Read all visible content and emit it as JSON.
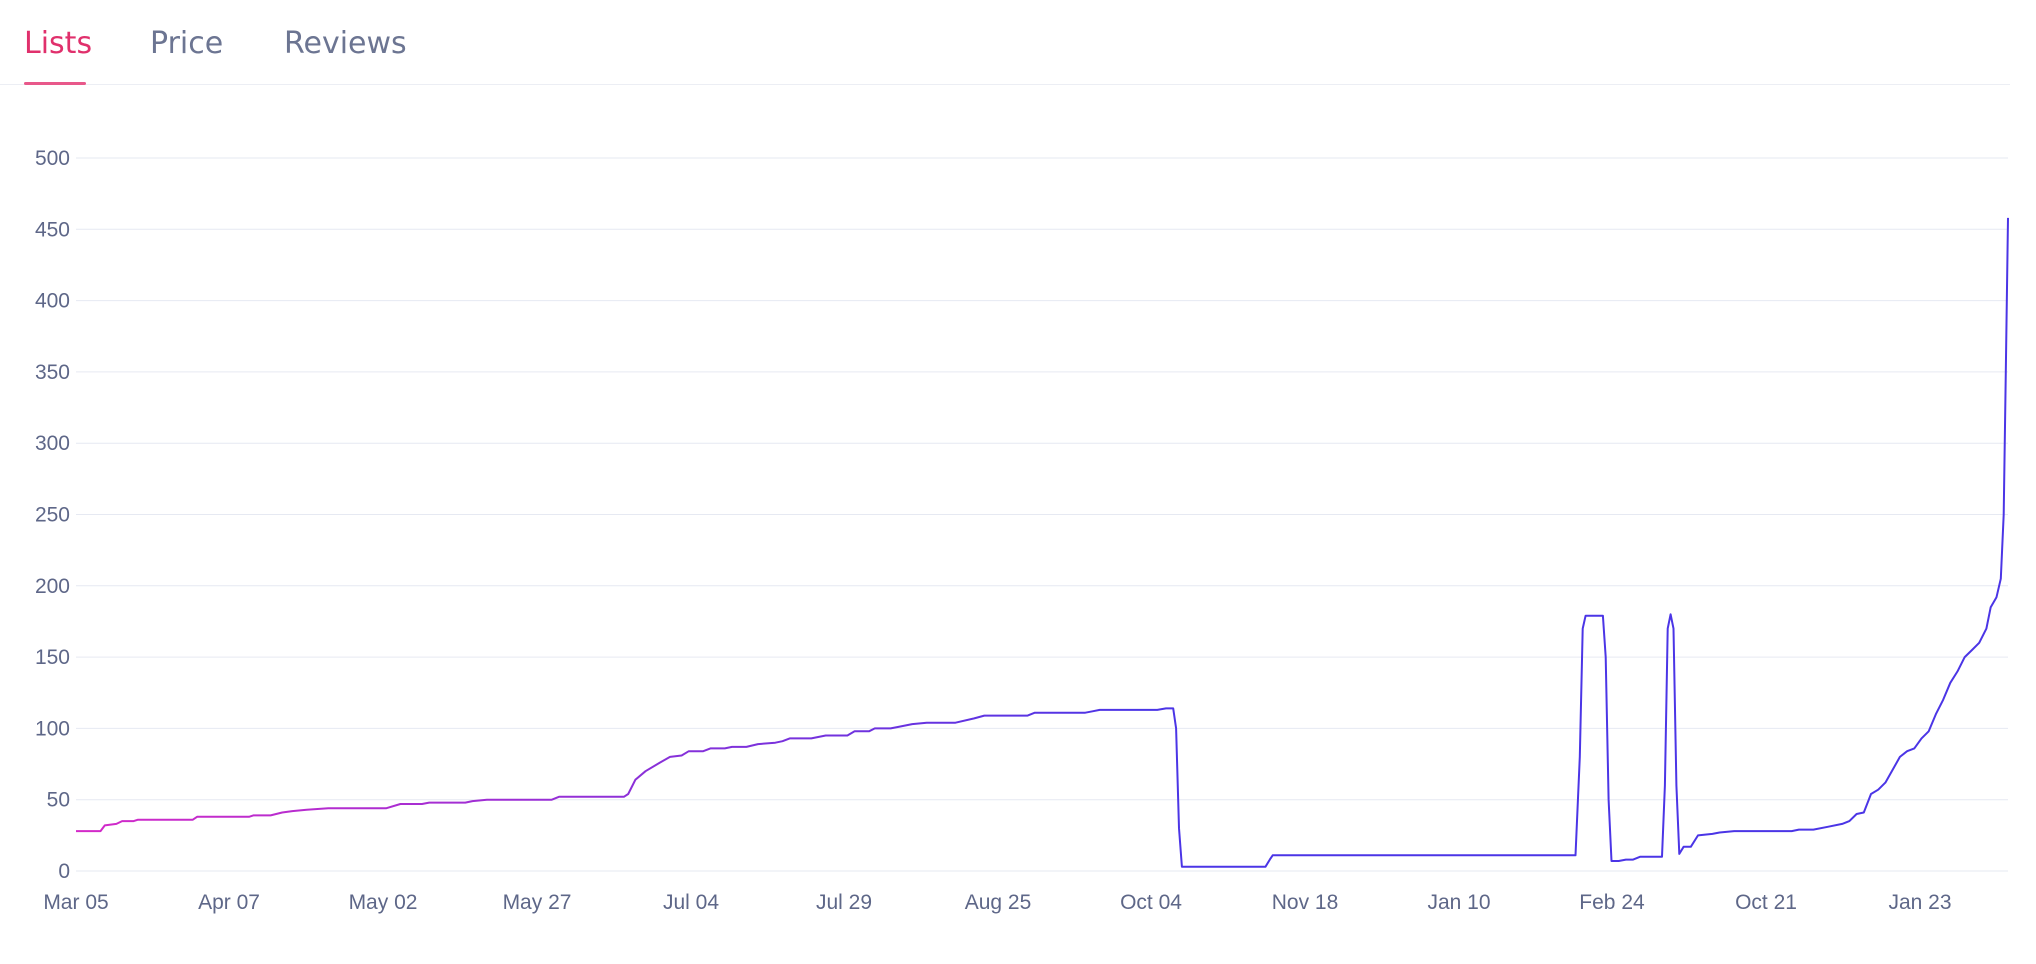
{
  "tabs": [
    {
      "label": "Lists",
      "active": true
    },
    {
      "label": "Price",
      "active": false
    },
    {
      "label": "Reviews",
      "active": false
    }
  ],
  "colors": {
    "accent": "#e0306c",
    "line_start": "#d42ac8",
    "line_end": "#4b35e6",
    "grid": "#e6e9f2",
    "tick_text": "#5e6788"
  },
  "chart_data": {
    "type": "line",
    "grid": true,
    "legend": "none",
    "ylim": [
      0,
      500
    ],
    "yticks": [
      0,
      50,
      100,
      150,
      200,
      250,
      300,
      350,
      400,
      450,
      500
    ],
    "xticks": [
      "Mar 05",
      "Apr 07",
      "May 02",
      "May 27",
      "Jul 04",
      "Jul 29",
      "Aug 25",
      "Oct 04",
      "Nov 18",
      "Jan 10",
      "Feb 24",
      "Oct 21",
      "Jan 23"
    ],
    "series": [
      {
        "points": [
          [
            0,
            28
          ],
          [
            1.7,
            28
          ],
          [
            2,
            32
          ],
          [
            2.8,
            33
          ],
          [
            3.2,
            35
          ],
          [
            4,
            35
          ],
          [
            4.3,
            36
          ],
          [
            8.1,
            36
          ],
          [
            8.4,
            38
          ],
          [
            12,
            38
          ],
          [
            12.3,
            39
          ],
          [
            13.5,
            39
          ],
          [
            14.3,
            41
          ],
          [
            15,
            42
          ],
          [
            16,
            43
          ],
          [
            17.5,
            44
          ],
          [
            21.5,
            44
          ],
          [
            22.5,
            47
          ],
          [
            24,
            47
          ],
          [
            24.5,
            48
          ],
          [
            27,
            48
          ],
          [
            27.5,
            49
          ],
          [
            28.5,
            50
          ],
          [
            33,
            50
          ],
          [
            33.5,
            52
          ],
          [
            38,
            52
          ],
          [
            38.3,
            54
          ],
          [
            38.8,
            64
          ],
          [
            39.5,
            70
          ],
          [
            40.5,
            76
          ],
          [
            41.2,
            80
          ],
          [
            42,
            81
          ],
          [
            42.5,
            84
          ],
          [
            43.5,
            84
          ],
          [
            44,
            86
          ],
          [
            45,
            86
          ],
          [
            45.5,
            87
          ],
          [
            46.5,
            87
          ],
          [
            47.3,
            89
          ],
          [
            48.5,
            90
          ],
          [
            49,
            91
          ],
          [
            49.5,
            93
          ],
          [
            51,
            93
          ],
          [
            52,
            95
          ],
          [
            53.5,
            95
          ],
          [
            54,
            98
          ],
          [
            55,
            98
          ],
          [
            55.4,
            100
          ],
          [
            56.5,
            100
          ],
          [
            57,
            101
          ],
          [
            58,
            103
          ],
          [
            59,
            104
          ],
          [
            61,
            104
          ],
          [
            62.3,
            107
          ],
          [
            63,
            109
          ],
          [
            66,
            109
          ],
          [
            66.5,
            111
          ],
          [
            70,
            111
          ],
          [
            70.5,
            112
          ],
          [
            71,
            113
          ],
          [
            75,
            113
          ],
          [
            75.6,
            114
          ],
          [
            76.1,
            114
          ],
          [
            76.3,
            100
          ],
          [
            76.5,
            30
          ],
          [
            76.7,
            3
          ],
          [
            82.5,
            3
          ],
          [
            82.8,
            8
          ],
          [
            83,
            11
          ],
          [
            104,
            11
          ],
          [
            104.3,
            80
          ],
          [
            104.5,
            170
          ],
          [
            104.7,
            179
          ],
          [
            105.9,
            179
          ],
          [
            106.1,
            150
          ],
          [
            106.3,
            50
          ],
          [
            106.5,
            7
          ],
          [
            107,
            7
          ],
          [
            107.5,
            8
          ],
          [
            108,
            8
          ],
          [
            108.5,
            10
          ],
          [
            110,
            10
          ],
          [
            110.2,
            60
          ],
          [
            110.4,
            170
          ],
          [
            110.6,
            180
          ],
          [
            110.8,
            170
          ],
          [
            111,
            60
          ],
          [
            111.2,
            12
          ],
          [
            111.5,
            17
          ],
          [
            112,
            17
          ],
          [
            112.5,
            25
          ],
          [
            113.5,
            26
          ],
          [
            114,
            27
          ],
          [
            115,
            28
          ],
          [
            119,
            28
          ],
          [
            119.5,
            29
          ],
          [
            120.5,
            29
          ],
          [
            121.5,
            31
          ],
          [
            122.5,
            33
          ],
          [
            123,
            35
          ],
          [
            123.5,
            40
          ],
          [
            124,
            41
          ],
          [
            124.5,
            54
          ],
          [
            125,
            57
          ],
          [
            125.5,
            62
          ],
          [
            126.5,
            80
          ],
          [
            127,
            84
          ],
          [
            127.5,
            86
          ],
          [
            128,
            93
          ],
          [
            128.5,
            98
          ],
          [
            129,
            110
          ],
          [
            129.5,
            120
          ],
          [
            130,
            132
          ],
          [
            130.5,
            140
          ],
          [
            131,
            150
          ],
          [
            131.5,
            155
          ],
          [
            132,
            160
          ],
          [
            132.5,
            170
          ],
          [
            132.8,
            185
          ],
          [
            133.2,
            192
          ],
          [
            133.5,
            205
          ],
          [
            133.7,
            250
          ],
          [
            133.85,
            350
          ],
          [
            134,
            458
          ]
        ]
      }
    ]
  }
}
